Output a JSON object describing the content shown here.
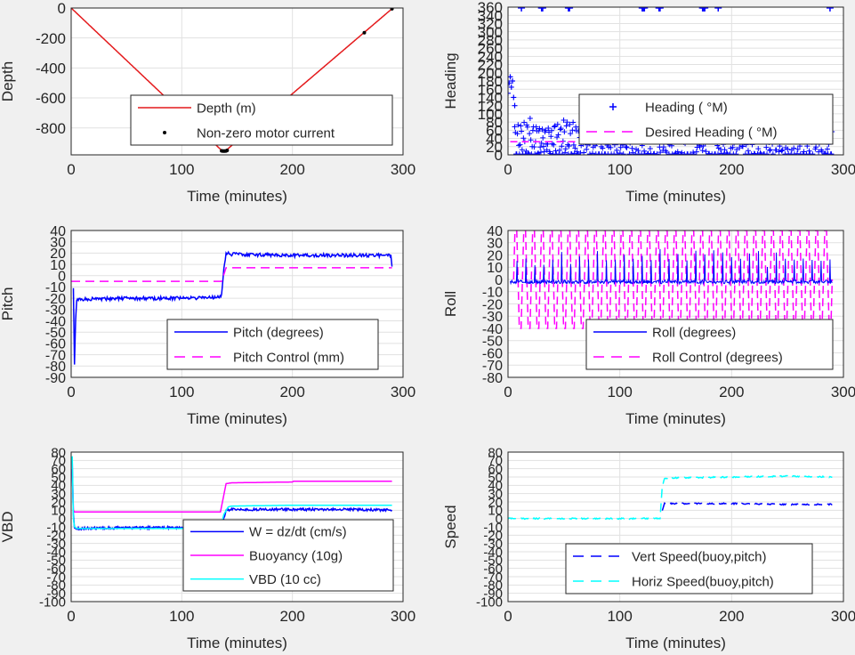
{
  "colors": {
    "background": "#f0f0f0",
    "axes_bg": "#ffffff",
    "grid": "#e1e1e1",
    "axis": "#262626",
    "red": "#e41a1c",
    "blue": "#0000ff",
    "magenta": "#ff00ff",
    "cyan": "#00ffff",
    "black": "#000000"
  },
  "chart_data": [
    {
      "id": "depth",
      "type": "line",
      "xlabel": "Time (minutes)",
      "ylabel": "Depth",
      "xlim": [
        0,
        300
      ],
      "ylim": [
        -980,
        0
      ],
      "xticks": [
        0,
        100,
        200,
        300
      ],
      "yticks": [
        0,
        -200,
        -400,
        -600,
        -800
      ],
      "grid": true,
      "legend_position": "lower-right",
      "series": [
        {
          "name": "Depth (m)",
          "color": "#e41a1c",
          "style": "solid",
          "x": [
            0,
            136,
            138,
            140,
            290
          ],
          "y": [
            0,
            -950,
            -955,
            -950,
            -5
          ]
        },
        {
          "name": "Non-zero motor current",
          "color": "#000000",
          "style": "dots",
          "x": [
            136,
            137,
            138,
            139,
            140,
            141,
            200,
            265,
            290
          ],
          "y": [
            -953,
            -955,
            -955,
            -955,
            -954,
            -950,
            -590,
            -165,
            -5
          ]
        }
      ]
    },
    {
      "id": "heading",
      "type": "scatter",
      "xlabel": "Time (minutes)",
      "ylabel": "Heading",
      "xlim": [
        0,
        300
      ],
      "ylim": [
        0,
        360
      ],
      "xticks": [
        0,
        100,
        200,
        300
      ],
      "yticks": [
        0,
        20,
        40,
        60,
        80,
        100,
        120,
        140,
        160,
        180,
        200,
        220,
        240,
        260,
        280,
        300,
        320,
        340,
        360
      ],
      "grid": true,
      "legend_position": "right",
      "series": [
        {
          "name": "Heading (  °M)",
          "color": "#0000ff",
          "style": "plus-markers",
          "outliers_x": [
            12,
            30,
            31,
            54,
            55,
            120,
            121,
            122,
            135,
            136,
            174,
            175,
            176,
            188,
            288
          ],
          "outliers_y": 358,
          "early_x": [
            0,
            1,
            2,
            3,
            4,
            5,
            6
          ],
          "early_y": [
            150,
            175,
            190,
            165,
            180,
            140,
            120
          ]
        },
        {
          "name": "Desired Heading (  °M)",
          "color": "#ff00ff",
          "style": "dashed",
          "value": 32
        }
      ]
    },
    {
      "id": "pitch",
      "type": "line",
      "xlabel": "Time (minutes)",
      "ylabel": "Pitch",
      "xlim": [
        0,
        300
      ],
      "ylim": [
        -90,
        40
      ],
      "xticks": [
        0,
        100,
        200,
        300
      ],
      "yticks": [
        40,
        30,
        20,
        10,
        0,
        -10,
        -20,
        -30,
        -40,
        -50,
        -60,
        -70,
        -80,
        -90
      ],
      "grid": true,
      "legend_position": "lower-right",
      "series": [
        {
          "name": "Pitch (degrees)",
          "color": "#0000ff",
          "style": "solid",
          "x": [
            2,
            3,
            4,
            5,
            10,
            50,
            100,
            134,
            136,
            138,
            140,
            145,
            200,
            250,
            289,
            290
          ],
          "y": [
            -10,
            -78,
            -40,
            -22,
            -21,
            -20,
            -20,
            -19,
            -17,
            5,
            20,
            19,
            18,
            18,
            18,
            8
          ]
        },
        {
          "name": "Pitch Control (mm)",
          "color": "#ff00ff",
          "style": "dashed",
          "x": [
            0,
            4,
            10,
            136,
            140,
            145,
            290
          ],
          "y": [
            -5,
            -5,
            -5,
            -5,
            7,
            7,
            7
          ]
        }
      ]
    },
    {
      "id": "roll",
      "type": "line",
      "xlabel": "Time (minutes)",
      "ylabel": "Roll",
      "xlim": [
        0,
        300
      ],
      "ylim": [
        -80,
        40
      ],
      "xticks": [
        0,
        100,
        200,
        300
      ],
      "yticks": [
        40,
        30,
        20,
        10,
        0,
        -10,
        -20,
        -30,
        -40,
        -50,
        -60,
        -70,
        -80
      ],
      "grid": true,
      "legend_position": "lower-right",
      "series": [
        {
          "name": "Roll (degrees)",
          "color": "#0000ff",
          "style": "solid",
          "baseline": -2,
          "amplitude": 25
        },
        {
          "name": "Roll Control (degrees)",
          "color": "#ff00ff",
          "style": "dashed",
          "amplitude": 40,
          "start": 5,
          "end": 290,
          "cycles": 36
        }
      ]
    },
    {
      "id": "vbd",
      "type": "line",
      "xlabel": "Time (minutes)",
      "ylabel": "VBD",
      "xlim": [
        0,
        300
      ],
      "ylim": [
        -100,
        80
      ],
      "xticks": [
        0,
        100,
        200,
        300
      ],
      "yticks": [
        80,
        70,
        60,
        50,
        40,
        30,
        20,
        10,
        0,
        -10,
        -20,
        -30,
        -40,
        -50,
        -60,
        -70,
        -80,
        -90,
        -100
      ],
      "grid": true,
      "legend_position": "lower-right",
      "series": [
        {
          "name": "W = dz/dt (cm/s)",
          "color": "#0000ff",
          "style": "solid",
          "x": [
            1,
            2,
            3,
            5,
            10,
            50,
            100,
            136,
            140,
            145,
            200,
            250,
            290
          ],
          "y": [
            60,
            5,
            -12,
            -12,
            -12,
            -11,
            -11,
            -11,
            10,
            11,
            11,
            11,
            10
          ]
        },
        {
          "name": "Buoyancy (10g)",
          "color": "#ff00ff",
          "style": "solid",
          "x": [
            1,
            2,
            3,
            5,
            10,
            135,
            140,
            145,
            200,
            201,
            290
          ],
          "y": [
            70,
            10,
            8,
            8,
            8,
            8,
            42,
            43,
            44,
            45,
            45
          ]
        },
        {
          "name": "VBD (10 cc)",
          "color": "#00ffff",
          "style": "solid",
          "x": [
            1,
            2,
            3,
            5,
            10,
            135,
            138,
            142,
            145,
            200,
            290
          ],
          "y": [
            75,
            0,
            -10,
            -12,
            -12,
            -12,
            5,
            14,
            15,
            16,
            16
          ]
        }
      ]
    },
    {
      "id": "speed",
      "type": "line",
      "xlabel": "Time (minutes)",
      "ylabel": "Speed",
      "xlim": [
        0,
        300
      ],
      "ylim": [
        -100,
        80
      ],
      "xticks": [
        0,
        100,
        200,
        300
      ],
      "yticks": [
        80,
        70,
        60,
        50,
        40,
        30,
        20,
        10,
        0,
        -10,
        -20,
        -30,
        -40,
        -50,
        -60,
        -70,
        -80,
        -90,
        -100
      ],
      "grid": true,
      "legend_position": "lower-right",
      "series": [
        {
          "name": "Vert Speed(buoy,pitch)",
          "color": "#0000ff",
          "style": "dashed",
          "x": [
            138,
            140,
            150,
            200,
            250,
            290
          ],
          "y": [
            10,
            18,
            18,
            18,
            17,
            17
          ]
        },
        {
          "name": "Horiz Speed(buoy,pitch)",
          "color": "#00ffff",
          "style": "dashed",
          "x": [
            0,
            136,
            138,
            140,
            150,
            200,
            250,
            290
          ],
          "y": [
            0,
            0,
            40,
            48,
            49,
            50,
            51,
            50
          ]
        }
      ]
    }
  ]
}
